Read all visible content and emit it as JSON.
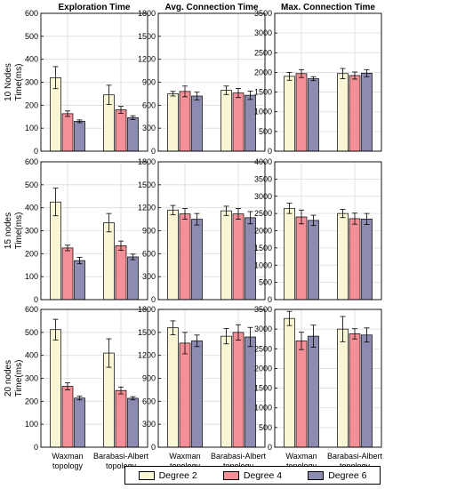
{
  "legend": {
    "items": [
      {
        "label": "Degree 2",
        "color": "#f9f6d6"
      },
      {
        "label": "Degree 4",
        "color": "#f58f97"
      },
      {
        "label": "Degree 6",
        "color": "#8c8cb2"
      }
    ]
  },
  "chart_data": {
    "type": "bar",
    "grid": true,
    "column_titles": [
      "Exploration Time",
      "Avg. Connection Time",
      "Max. Connection Time"
    ],
    "row_labels": [
      "10 Nodes",
      "15 nodes",
      "20 nodes"
    ],
    "ylabel": "Time(ms)",
    "categories": [
      "Waxman topology",
      "Barabasi-Albert topology"
    ],
    "series_names": [
      "Degree 2",
      "Degree 4",
      "Degree 6"
    ],
    "panels": [
      {
        "row": 0,
        "col": 0,
        "ylim": [
          0,
          600
        ],
        "yticks": [
          0,
          100,
          200,
          300,
          400,
          500,
          600
        ],
        "series": [
          {
            "name": "Degree 2",
            "values": [
              320,
              245
            ],
            "errors": [
              48,
              42
            ]
          },
          {
            "name": "Degree 4",
            "values": [
              163,
              180
            ],
            "errors": [
              12,
              15
            ]
          },
          {
            "name": "Degree 6",
            "values": [
              130,
              146
            ],
            "errors": [
              6,
              8
            ]
          }
        ]
      },
      {
        "row": 0,
        "col": 1,
        "ylim": [
          0,
          1800
        ],
        "yticks": [
          0,
          300,
          600,
          900,
          1200,
          1500,
          1800
        ],
        "series": [
          {
            "name": "Degree 2",
            "values": [
              750,
              795
            ],
            "errors": [
              30,
              55
            ]
          },
          {
            "name": "Degree 4",
            "values": [
              780,
              760
            ],
            "errors": [
              70,
              60
            ]
          },
          {
            "name": "Degree 6",
            "values": [
              720,
              730
            ],
            "errors": [
              50,
              55
            ]
          }
        ]
      },
      {
        "row": 0,
        "col": 2,
        "ylim": [
          0,
          3500
        ],
        "yticks": [
          0,
          500,
          1000,
          1500,
          2000,
          2500,
          3000,
          3500
        ],
        "series": [
          {
            "name": "Degree 2",
            "values": [
              1900,
              1970
            ],
            "errors": [
              100,
              130
            ]
          },
          {
            "name": "Degree 4",
            "values": [
              1970,
              1920
            ],
            "errors": [
              100,
              90
            ]
          },
          {
            "name": "Degree 6",
            "values": [
              1840,
              1980
            ],
            "errors": [
              50,
              90
            ]
          }
        ]
      },
      {
        "row": 1,
        "col": 0,
        "ylim": [
          0,
          600
        ],
        "yticks": [
          0,
          100,
          200,
          300,
          400,
          500,
          600
        ],
        "series": [
          {
            "name": "Degree 2",
            "values": [
              425,
              335
            ],
            "errors": [
              60,
              40
            ]
          },
          {
            "name": "Degree 4",
            "values": [
              225,
              235
            ],
            "errors": [
              12,
              20
            ]
          },
          {
            "name": "Degree 6",
            "values": [
              170,
              186
            ],
            "errors": [
              14,
              12
            ]
          }
        ]
      },
      {
        "row": 1,
        "col": 1,
        "ylim": [
          0,
          1800
        ],
        "yticks": [
          0,
          300,
          600,
          900,
          1200,
          1500,
          1800
        ],
        "series": [
          {
            "name": "Degree 2",
            "values": [
              1170,
              1160
            ],
            "errors": [
              60,
              60
            ]
          },
          {
            "name": "Degree 4",
            "values": [
              1120,
              1120
            ],
            "errors": [
              70,
              70
            ]
          },
          {
            "name": "Degree 6",
            "values": [
              1050,
              1070
            ],
            "errors": [
              75,
              80
            ]
          }
        ]
      },
      {
        "row": 1,
        "col": 2,
        "ylim": [
          0,
          4000
        ],
        "yticks": [
          0,
          500,
          1000,
          1500,
          2000,
          2500,
          3000,
          3500,
          4000
        ],
        "series": [
          {
            "name": "Degree 2",
            "values": [
              2650,
              2500
            ],
            "errors": [
              150,
              120
            ]
          },
          {
            "name": "Degree 4",
            "values": [
              2400,
              2350
            ],
            "errors": [
              200,
              160
            ]
          },
          {
            "name": "Degree 6",
            "values": [
              2300,
              2340
            ],
            "errors": [
              150,
              160
            ]
          }
        ]
      },
      {
        "row": 2,
        "col": 0,
        "ylim": [
          0,
          600
        ],
        "yticks": [
          0,
          100,
          200,
          300,
          400,
          500,
          600
        ],
        "series": [
          {
            "name": "Degree 2",
            "values": [
              512,
              410
            ],
            "errors": [
              45,
              62
            ]
          },
          {
            "name": "Degree 4",
            "values": [
              265,
              247
            ],
            "errors": [
              15,
              15
            ]
          },
          {
            "name": "Degree 6",
            "values": [
              214,
              213
            ],
            "errors": [
              8,
              7
            ]
          }
        ]
      },
      {
        "row": 2,
        "col": 1,
        "ylim": [
          0,
          1800
        ],
        "yticks": [
          0,
          300,
          600,
          900,
          1200,
          1500,
          1800
        ],
        "series": [
          {
            "name": "Degree 2",
            "values": [
              1560,
              1450
            ],
            "errors": [
              90,
              100
            ]
          },
          {
            "name": "Degree 4",
            "values": [
              1360,
              1500
            ],
            "errors": [
              140,
              100
            ]
          },
          {
            "name": "Degree 6",
            "values": [
              1390,
              1440
            ],
            "errors": [
              75,
              125
            ]
          }
        ]
      },
      {
        "row": 2,
        "col": 2,
        "ylim": [
          0,
          3500
        ],
        "yticks": [
          0,
          500,
          1000,
          1500,
          2000,
          2500,
          3000,
          3500
        ],
        "series": [
          {
            "name": "Degree 2",
            "values": [
              3270,
              3000
            ],
            "errors": [
              180,
              320
            ]
          },
          {
            "name": "Degree 4",
            "values": [
              2700,
              2880
            ],
            "errors": [
              220,
              130
            ]
          },
          {
            "name": "Degree 6",
            "values": [
              2820,
              2850
            ],
            "errors": [
              280,
              180
            ]
          }
        ]
      }
    ]
  }
}
